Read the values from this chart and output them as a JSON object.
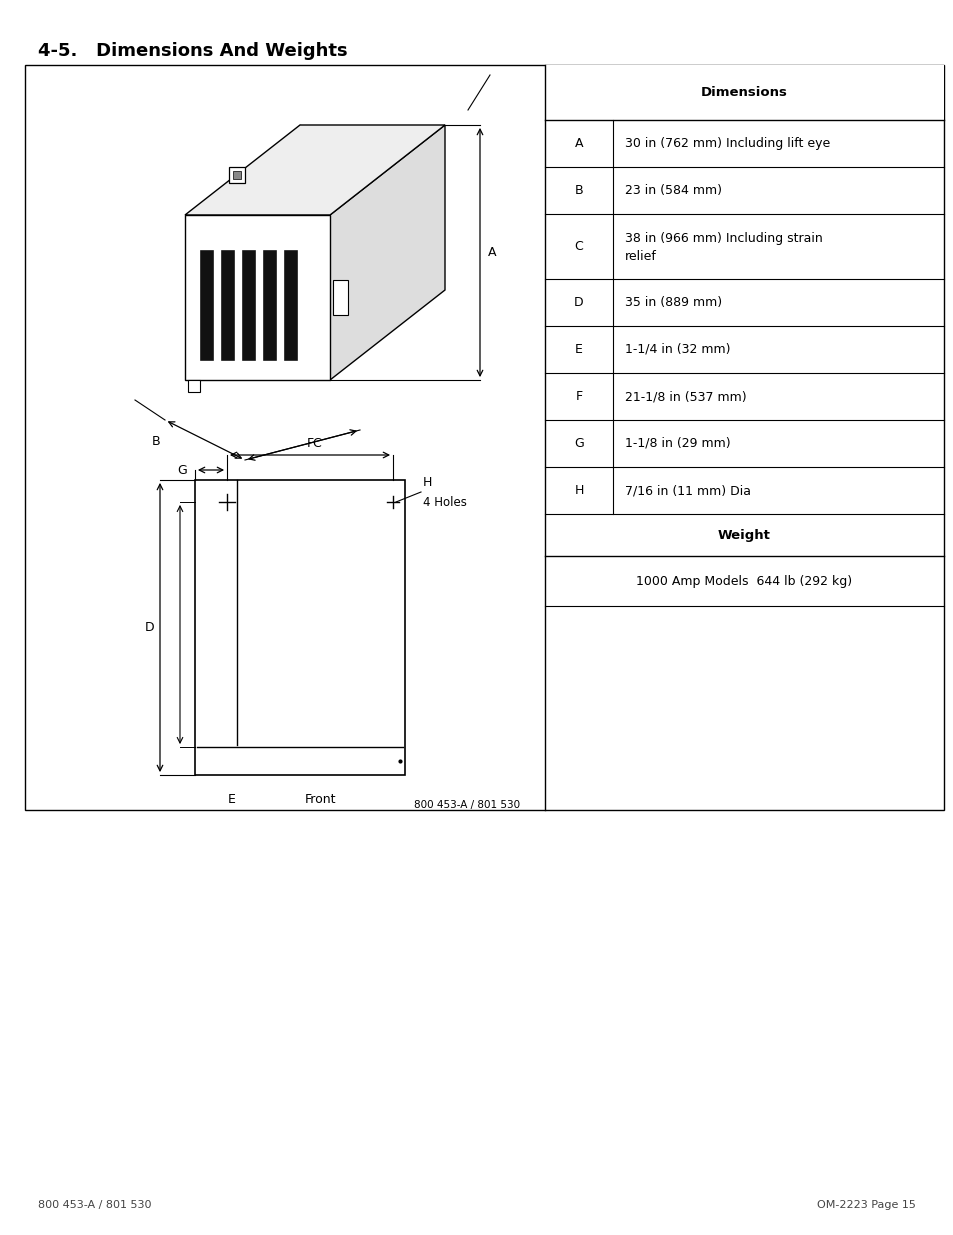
{
  "page_title": "4-5.   Dimensions And Weights",
  "page_title_fontsize": 13,
  "background_color": "#ffffff",
  "font_color": "#000000",
  "dimension_rows": [
    [
      "A",
      "30 in (762 mm) Including lift eye"
    ],
    [
      "B",
      "23 in (584 mm)"
    ],
    [
      "C",
      "38 in (966 mm) Including strain\nrelief"
    ],
    [
      "D",
      "35 in (889 mm)"
    ],
    [
      "E",
      "1-1/4 in (32 mm)"
    ],
    [
      "F",
      "21-1/8 in (537 mm)"
    ],
    [
      "G",
      "1-1/8 in (29 mm)"
    ],
    [
      "H",
      "7/16 in (11 mm) Dia"
    ]
  ],
  "weight_row": "1000 Amp Models  644 lb (292 kg)",
  "footer_left": "800 453-A / 801 530",
  "footer_right": "OM-2223 Page 15"
}
